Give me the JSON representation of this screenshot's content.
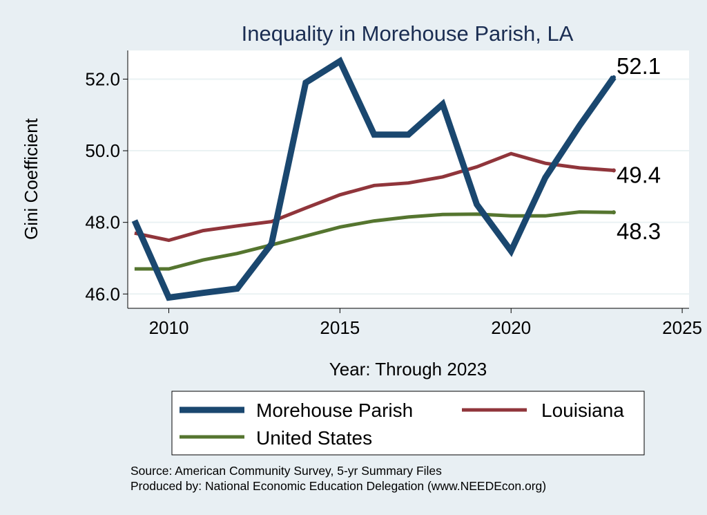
{
  "chart_data": {
    "type": "line",
    "title": "Inequality in Morehouse Parish, LA",
    "xlabel": "Year: Through 2023",
    "ylabel": "Gini Coefficient",
    "xlim": [
      2008.8,
      2025.2
    ],
    "ylim": [
      45.6,
      52.8
    ],
    "xticks": [
      2010,
      2015,
      2020,
      2025
    ],
    "yticks": [
      46.0,
      48.0,
      50.0,
      52.0
    ],
    "xtick_labels": [
      "2010",
      "2015",
      "2020",
      "2025"
    ],
    "ytick_labels": [
      "46.0",
      "48.0",
      "50.0",
      "52.0"
    ],
    "grid": true,
    "legend_position": "bottom",
    "series": [
      {
        "name": "Morehouse Parish",
        "color": "#1a476f",
        "x": [
          2009,
          2010,
          2011,
          2012,
          2013,
          2014,
          2015,
          2016,
          2017,
          2018,
          2019,
          2020,
          2021,
          2022,
          2023
        ],
        "values": [
          48.05,
          45.9,
          46.03,
          46.15,
          47.4,
          51.9,
          52.5,
          50.45,
          50.45,
          51.3,
          48.5,
          47.2,
          49.25,
          50.7,
          52.05
        ],
        "end_label": "52.1"
      },
      {
        "name": "Louisiana",
        "color": "#90353b",
        "x": [
          2009,
          2010,
          2011,
          2012,
          2013,
          2014,
          2015,
          2016,
          2017,
          2018,
          2019,
          2020,
          2021,
          2022,
          2023
        ],
        "values": [
          47.7,
          47.5,
          47.77,
          47.9,
          48.02,
          48.4,
          48.77,
          49.03,
          49.1,
          49.27,
          49.55,
          49.92,
          49.65,
          49.52,
          49.45
        ],
        "end_label": "49.4"
      },
      {
        "name": "United States",
        "color": "#55752f",
        "x": [
          2009,
          2010,
          2011,
          2012,
          2013,
          2014,
          2015,
          2016,
          2017,
          2018,
          2019,
          2020,
          2021,
          2022,
          2023
        ],
        "values": [
          46.7,
          46.7,
          46.95,
          47.13,
          47.37,
          47.62,
          47.87,
          48.04,
          48.15,
          48.22,
          48.23,
          48.18,
          48.18,
          48.29,
          48.28
        ],
        "end_label": "48.3"
      }
    ]
  },
  "source": {
    "line1": "Source: American Community Survey, 5-yr Summary Files",
    "line2": "Produced by: National Economic Education Delegation (www.NEEDEcon.org)"
  }
}
